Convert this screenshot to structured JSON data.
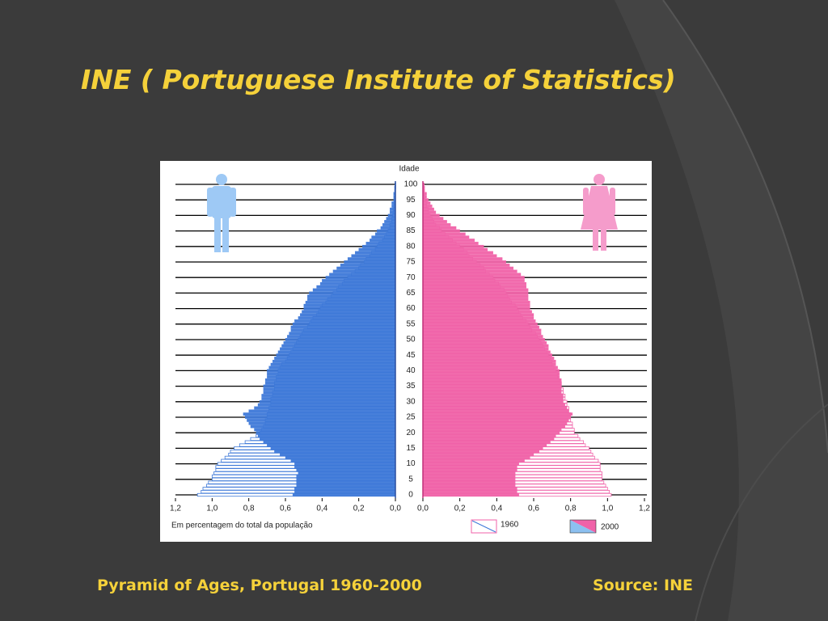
{
  "title": "INE ( Portuguese Institute of Statistics)",
  "caption": "Pyramid of Ages, Portugal 1960-2000",
  "source": "Source: INE",
  "chart_data": {
    "type": "pyramid",
    "y_label": "Idade",
    "x_label": "Em percentagem do total da população",
    "men_color": "#3d78d8",
    "women_color": "#f062a8",
    "categories": [
      0,
      null,
      null,
      null,
      null,
      5,
      null,
      null,
      null,
      null,
      10,
      null,
      null,
      null,
      null,
      15,
      null,
      null,
      null,
      null,
      20,
      null,
      null,
      null,
      null,
      25,
      null,
      null,
      null,
      null,
      30,
      null,
      null,
      null,
      null,
      35,
      null,
      null,
      null,
      null,
      40,
      null,
      null,
      null,
      null,
      45,
      null,
      null,
      null,
      null,
      50,
      null,
      null,
      null,
      null,
      55,
      null,
      null,
      null,
      null,
      60,
      null,
      null,
      null,
      null,
      65,
      null,
      null,
      null,
      null,
      70,
      null,
      null,
      null,
      null,
      75,
      null,
      null,
      null,
      null,
      80,
      null,
      null,
      null,
      null,
      85,
      null,
      null,
      null,
      null,
      90,
      null,
      null,
      null,
      null,
      95,
      null,
      null,
      null,
      null,
      100
    ],
    "xlim": [
      0,
      1.2
    ],
    "xticks": [
      {
        "value": 0,
        "label": "0,0"
      },
      {
        "value": 0.2,
        "label": "0,2"
      },
      {
        "value": 0.4,
        "label": "0,4"
      },
      {
        "value": 0.6,
        "label": "0,6"
      },
      {
        "value": 0.8,
        "label": "0,8"
      },
      {
        "value": 1,
        "label": "1,0"
      },
      {
        "value": 1.2,
        "label": "1,2"
      }
    ],
    "series": [
      {
        "name": "1960",
        "style": "outline",
        "men": [
          1.08,
          1.06,
          1.05,
          1.03,
          1.02,
          1.0,
          1.0,
          0.99,
          0.98,
          0.98,
          0.97,
          0.95,
          0.93,
          0.91,
          0.9,
          0.88,
          0.85,
          0.82,
          0.79,
          0.76,
          0.74,
          0.73,
          0.72,
          0.71,
          0.71,
          0.7,
          0.7,
          0.69,
          0.69,
          0.68,
          0.68,
          0.68,
          0.67,
          0.67,
          0.66,
          0.66,
          0.66,
          0.65,
          0.65,
          0.64,
          0.64,
          0.63,
          0.62,
          0.6,
          0.59,
          0.58,
          0.57,
          0.56,
          0.55,
          0.54,
          0.53,
          0.52,
          0.51,
          0.5,
          0.48,
          0.47,
          0.46,
          0.45,
          0.43,
          0.42,
          0.41,
          0.4,
          0.38,
          0.37,
          0.35,
          0.34,
          0.32,
          0.31,
          0.29,
          0.28,
          0.26,
          0.24,
          0.22,
          0.2,
          0.19,
          0.17,
          0.16,
          0.14,
          0.13,
          0.11,
          0.1,
          0.09,
          0.07,
          0.06,
          0.05,
          0.04,
          0.03,
          0.03,
          0.02,
          0.02,
          0.015,
          0.01,
          0.01,
          0.008,
          0.006,
          0.004,
          0.003,
          0.002,
          0.002,
          0.001,
          0.001
        ],
        "women": [
          1.02,
          1.01,
          1.0,
          0.99,
          0.98,
          0.97,
          0.97,
          0.97,
          0.96,
          0.96,
          0.96,
          0.95,
          0.93,
          0.92,
          0.91,
          0.9,
          0.88,
          0.87,
          0.85,
          0.84,
          0.82,
          0.82,
          0.81,
          0.81,
          0.8,
          0.8,
          0.8,
          0.79,
          0.79,
          0.78,
          0.78,
          0.77,
          0.77,
          0.76,
          0.76,
          0.75,
          0.75,
          0.74,
          0.73,
          0.73,
          0.72,
          0.71,
          0.7,
          0.7,
          0.69,
          0.68,
          0.67,
          0.66,
          0.65,
          0.64,
          0.63,
          0.62,
          0.61,
          0.59,
          0.58,
          0.57,
          0.56,
          0.54,
          0.53,
          0.52,
          0.51,
          0.5,
          0.48,
          0.47,
          0.46,
          0.45,
          0.44,
          0.42,
          0.41,
          0.39,
          0.38,
          0.36,
          0.34,
          0.33,
          0.31,
          0.29,
          0.27,
          0.25,
          0.24,
          0.22,
          0.2,
          0.18,
          0.16,
          0.14,
          0.12,
          0.1,
          0.09,
          0.07,
          0.06,
          0.05,
          0.04,
          0.03,
          0.03,
          0.02,
          0.02,
          0.01,
          0.01,
          0.008,
          0.006,
          0.004,
          0.002
        ]
      },
      {
        "name": "2000",
        "style": "filled",
        "men": [
          0.56,
          0.55,
          0.55,
          0.54,
          0.54,
          0.54,
          0.54,
          0.53,
          0.54,
          0.55,
          0.55,
          0.57,
          0.6,
          0.63,
          0.66,
          0.68,
          0.7,
          0.72,
          0.74,
          0.75,
          0.76,
          0.77,
          0.79,
          0.8,
          0.81,
          0.82,
          0.83,
          0.8,
          0.77,
          0.75,
          0.74,
          0.73,
          0.73,
          0.72,
          0.72,
          0.72,
          0.71,
          0.71,
          0.7,
          0.7,
          0.7,
          0.69,
          0.68,
          0.67,
          0.66,
          0.65,
          0.64,
          0.63,
          0.62,
          0.61,
          0.6,
          0.59,
          0.58,
          0.57,
          0.57,
          0.56,
          0.55,
          0.53,
          0.52,
          0.51,
          0.5,
          0.5,
          0.49,
          0.48,
          0.48,
          0.47,
          0.45,
          0.43,
          0.41,
          0.4,
          0.38,
          0.36,
          0.34,
          0.32,
          0.3,
          0.28,
          0.26,
          0.24,
          0.22,
          0.2,
          0.18,
          0.16,
          0.14,
          0.13,
          0.11,
          0.1,
          0.08,
          0.07,
          0.06,
          0.05,
          0.04,
          0.03,
          0.03,
          0.02,
          0.02,
          0.01,
          0.01,
          0.01,
          0.005,
          0.005,
          0.003
        ],
        "women": [
          0.52,
          0.51,
          0.51,
          0.5,
          0.5,
          0.5,
          0.5,
          0.5,
          0.51,
          0.51,
          0.52,
          0.55,
          0.58,
          0.6,
          0.63,
          0.65,
          0.67,
          0.69,
          0.71,
          0.72,
          0.74,
          0.75,
          0.77,
          0.78,
          0.79,
          0.8,
          0.81,
          0.79,
          0.78,
          0.77,
          0.76,
          0.76,
          0.76,
          0.75,
          0.75,
          0.75,
          0.75,
          0.75,
          0.74,
          0.74,
          0.74,
          0.73,
          0.72,
          0.72,
          0.71,
          0.7,
          0.69,
          0.68,
          0.68,
          0.67,
          0.66,
          0.65,
          0.64,
          0.64,
          0.63,
          0.62,
          0.61,
          0.6,
          0.6,
          0.59,
          0.58,
          0.58,
          0.58,
          0.57,
          0.57,
          0.57,
          0.57,
          0.56,
          0.56,
          0.55,
          0.55,
          0.53,
          0.51,
          0.49,
          0.47,
          0.45,
          0.43,
          0.4,
          0.38,
          0.35,
          0.33,
          0.3,
          0.28,
          0.25,
          0.23,
          0.2,
          0.18,
          0.15,
          0.13,
          0.11,
          0.09,
          0.07,
          0.06,
          0.05,
          0.04,
          0.03,
          0.02,
          0.02,
          0.01,
          0.01,
          0.008
        ]
      }
    ]
  }
}
